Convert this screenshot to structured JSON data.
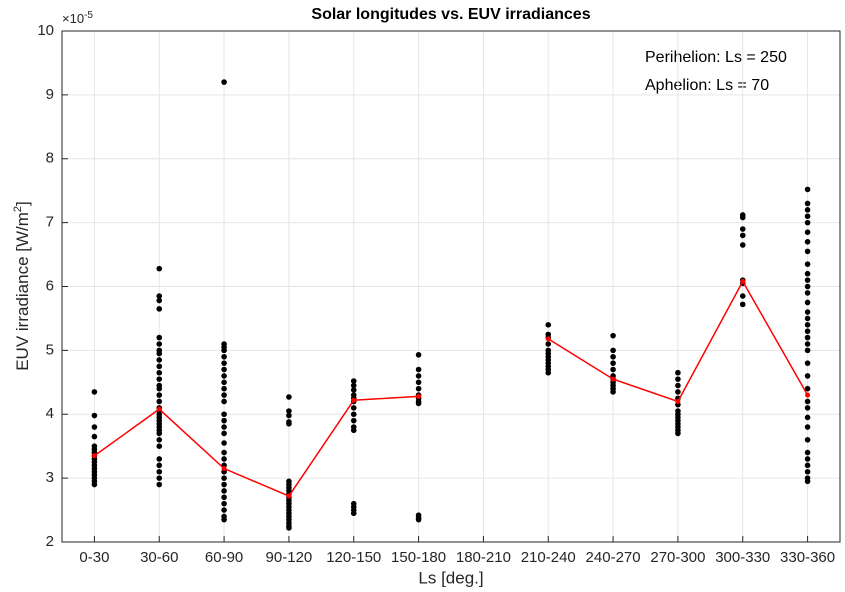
{
  "chart_data": {
    "type": "scatter",
    "title": "Solar longitudes vs. EUV irradiances",
    "xlabel": "Ls [deg.]",
    "ylabel": {
      "text": "EUV irradiance [W/m",
      "sup": "2",
      "end": "]"
    },
    "y_multiplier": {
      "base": "×10",
      "exponent": "-5"
    },
    "annotations": [
      "Perihelion: Ls = 250",
      "Aphelion: Ls = 70"
    ],
    "categories": [
      "0-30",
      "30-60",
      "60-90",
      "90-120",
      "120-150",
      "150-180",
      "180-210",
      "210-240",
      "240-270",
      "270-300",
      "300-330",
      "330-360"
    ],
    "ylim": [
      2,
      10
    ],
    "yticks": [
      2,
      3,
      4,
      5,
      6,
      7,
      8,
      9,
      10
    ],
    "grid": true,
    "point_color": "#000000",
    "line_color": "#ff0000",
    "points": [
      [
        4.35,
        3.98,
        3.8,
        3.65,
        3.5,
        3.45,
        3.4,
        3.35,
        3.3,
        3.25,
        3.2,
        3.15,
        3.1,
        3.05,
        3.0,
        2.95,
        2.9
      ],
      [
        6.28,
        5.85,
        5.78,
        5.65,
        5.2,
        5.1,
        5.0,
        4.95,
        4.85,
        4.75,
        4.65,
        4.55,
        4.45,
        4.4,
        4.3,
        4.2,
        4.1,
        4.05,
        4.0,
        3.95,
        3.9,
        3.85,
        3.8,
        3.75,
        3.7,
        3.6,
        3.5,
        3.3,
        3.2,
        3.1,
        3.0,
        2.9
      ],
      [
        9.2,
        5.1,
        5.05,
        5.0,
        4.9,
        4.8,
        4.7,
        4.6,
        4.5,
        4.4,
        4.3,
        4.2,
        4.0,
        3.9,
        3.8,
        3.7,
        3.55,
        3.4,
        3.3,
        3.2,
        3.1,
        3.0,
        2.9,
        2.8,
        2.7,
        2.6,
        2.5,
        2.4,
        2.35
      ],
      [
        4.27,
        4.05,
        3.98,
        3.88,
        3.85,
        2.95,
        2.9,
        2.85,
        2.8,
        2.75,
        2.7,
        2.65,
        2.6,
        2.55,
        2.5,
        2.45,
        2.4,
        2.35,
        2.3,
        2.25,
        2.22
      ],
      [
        4.52,
        4.45,
        4.38,
        4.3,
        4.25,
        4.2,
        4.1,
        4.0,
        3.9,
        3.8,
        3.75,
        2.6,
        2.55,
        2.5,
        2.45
      ],
      [
        4.93,
        4.7,
        4.6,
        4.5,
        4.4,
        4.3,
        4.25,
        4.2,
        4.17,
        2.42,
        2.38,
        2.35
      ],
      [],
      [
        5.4,
        5.25,
        5.2,
        5.1,
        5.0,
        4.95,
        4.9,
        4.85,
        4.8,
        4.75,
        4.7,
        4.65
      ],
      [
        5.23,
        5.0,
        4.9,
        4.8,
        4.7,
        4.6,
        4.55,
        4.5,
        4.45,
        4.4,
        4.35
      ],
      [
        4.65,
        4.55,
        4.45,
        4.35,
        4.25,
        4.15,
        4.05,
        4.0,
        3.95,
        3.9,
        3.85,
        3.8,
        3.75,
        3.7
      ],
      [
        7.12,
        7.08,
        6.9,
        6.8,
        6.65,
        6.1,
        6.05,
        5.85,
        5.72
      ],
      [
        7.52,
        7.3,
        7.2,
        7.1,
        7.0,
        6.85,
        6.7,
        6.55,
        6.35,
        6.2,
        6.1,
        6.0,
        5.9,
        5.75,
        5.6,
        5.5,
        5.4,
        5.3,
        5.2,
        5.1,
        5.0,
        4.8,
        4.6,
        4.4,
        4.2,
        4.1,
        3.95,
        3.8,
        3.6,
        3.4,
        3.3,
        3.2,
        3.1,
        3.0,
        2.95
      ]
    ],
    "mean": [
      3.35,
      4.08,
      3.15,
      2.72,
      4.22,
      4.28,
      null,
      5.18,
      4.55,
      4.2,
      6.08,
      4.3
    ]
  }
}
